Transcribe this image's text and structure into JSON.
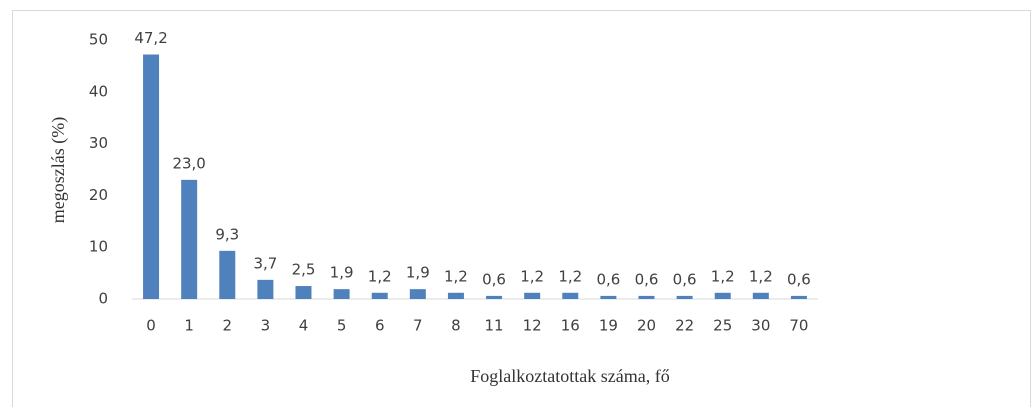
{
  "chart_data": {
    "type": "bar",
    "x_label": "Foglalkoztatottak száma, fő",
    "y_label": "megoszlás (%)",
    "categories": [
      "0",
      "1",
      "2",
      "3",
      "4",
      "5",
      "6",
      "7",
      "8",
      "11",
      "12",
      "16",
      "19",
      "20",
      "22",
      "25",
      "30",
      "70"
    ],
    "values": [
      47.2,
      23.0,
      9.3,
      3.7,
      2.5,
      1.9,
      1.2,
      1.9,
      1.2,
      0.6,
      1.2,
      1.2,
      0.6,
      0.6,
      0.6,
      1.2,
      1.2,
      0.6
    ],
    "value_labels": [
      "47,2",
      "23,0",
      "9,3",
      "3,7",
      "2,5",
      "1,9",
      "1,2",
      "1,9",
      "1,2",
      "0,6",
      "1,2",
      "1,2",
      "0,6",
      "0,6",
      "0,6",
      "1,2",
      "1,2",
      "0,6"
    ],
    "color": "#4f81bd",
    "ylim": [
      0,
      50
    ],
    "yticks": [
      0,
      10,
      20,
      30,
      40,
      50
    ],
    "grid": false
  }
}
